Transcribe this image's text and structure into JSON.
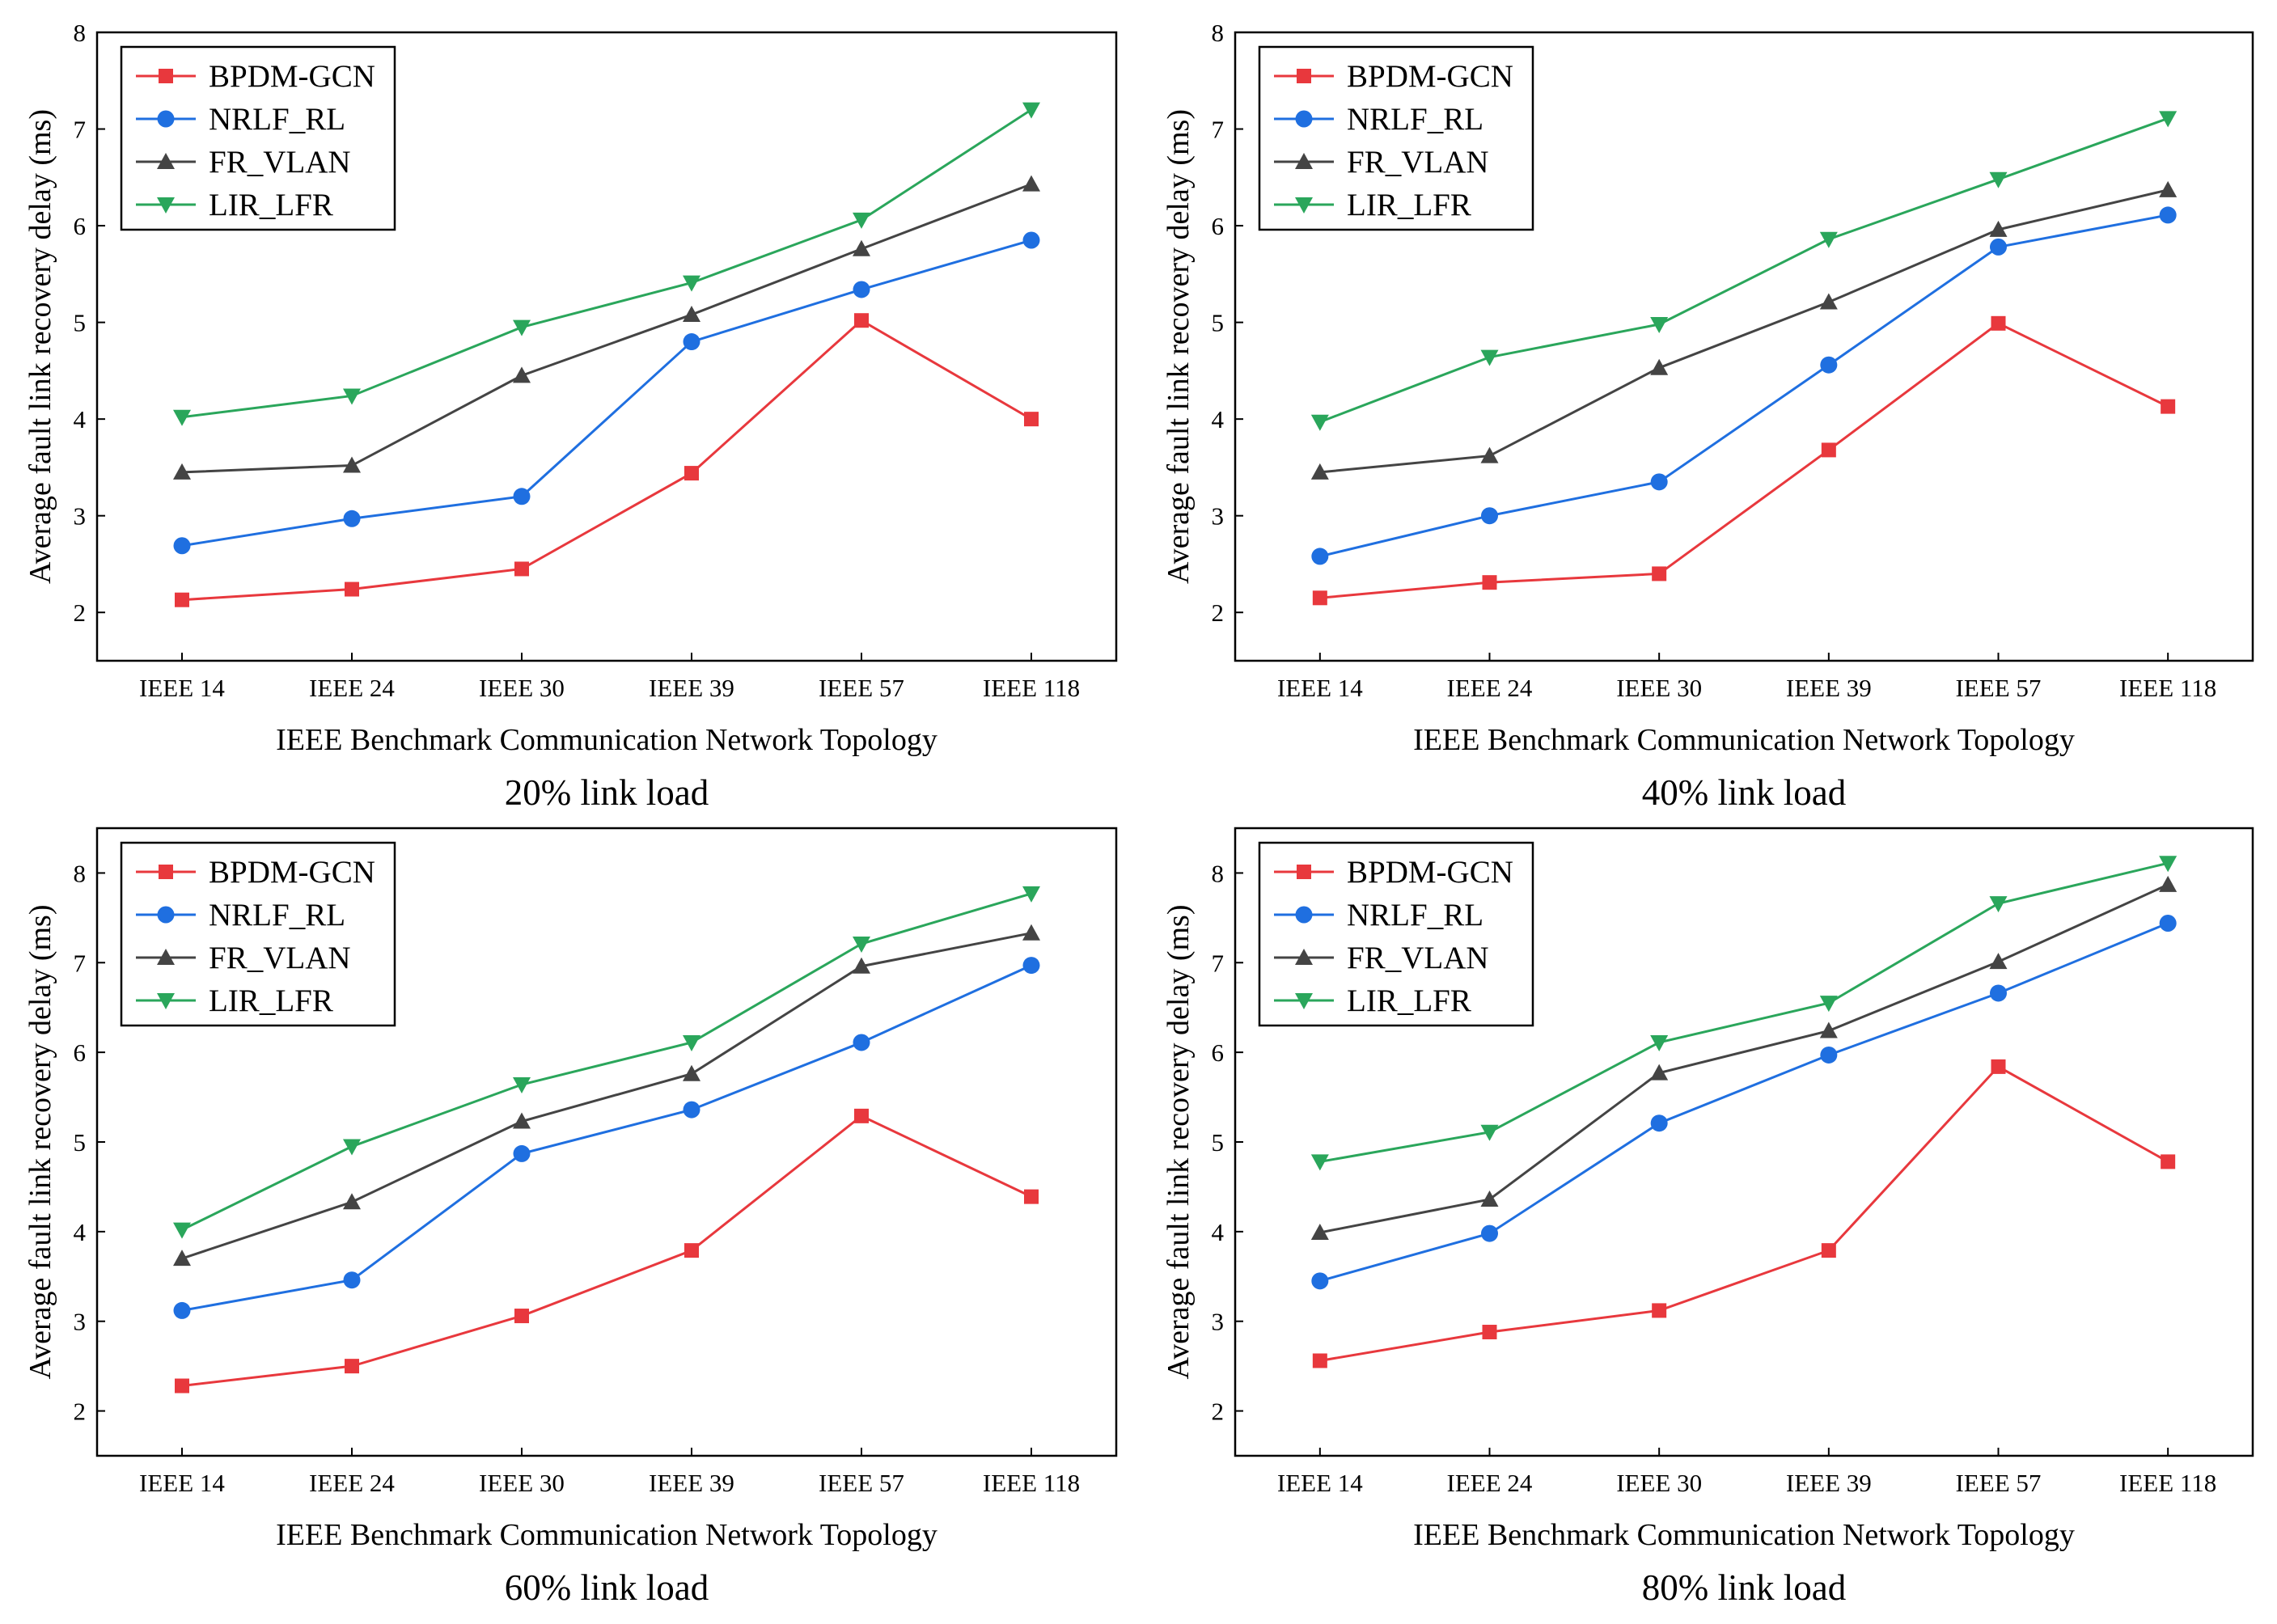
{
  "chart_data": [
    {
      "type": "line",
      "caption": "20% link load",
      "xlabel": "IEEE Benchmark Communication Network Topology",
      "ylabel": "Average fault link recovery delay (ms)",
      "categories": [
        "IEEE 14",
        "IEEE 24",
        "IEEE 30",
        "IEEE 39",
        "IEEE 57",
        "IEEE 118"
      ],
      "ylim": [
        1.5,
        8
      ],
      "yticks": [
        2,
        3,
        4,
        5,
        6,
        7,
        8
      ],
      "ytick_labels": [
        "2",
        "3",
        "4",
        "5",
        "6",
        "7",
        "8"
      ],
      "series": [
        {
          "name": "BPDM-GCN",
          "color": "#e8383d",
          "marker": "square",
          "values": [
            2.13,
            2.24,
            2.45,
            3.44,
            5.02,
            4.0
          ]
        },
        {
          "name": "NRLF_RL",
          "color": "#1f6fe0",
          "marker": "circle",
          "values": [
            2.69,
            2.97,
            3.2,
            4.8,
            5.34,
            5.85
          ]
        },
        {
          "name": "FR_VLAN",
          "color": "#444444",
          "marker": "triangle-up",
          "values": [
            3.45,
            3.52,
            4.45,
            5.08,
            5.76,
            6.43
          ]
        },
        {
          "name": "LIR_LFR",
          "color": "#2aa65b",
          "marker": "triangle-down",
          "values": [
            4.02,
            4.24,
            4.95,
            5.41,
            6.06,
            7.2
          ]
        }
      ]
    },
    {
      "type": "line",
      "caption": "40% link load",
      "xlabel": "IEEE Benchmark Communication Network Topology",
      "ylabel": "Average fault link recovery delay (ms)",
      "categories": [
        "IEEE 14",
        "IEEE 24",
        "IEEE 30",
        "IEEE 39",
        "IEEE 57",
        "IEEE 118"
      ],
      "ylim": [
        1.5,
        8
      ],
      "yticks": [
        2,
        3,
        4,
        5,
        6,
        7,
        8
      ],
      "ytick_labels": [
        "2",
        "3",
        "4",
        "5",
        "6",
        "7",
        "8"
      ],
      "series": [
        {
          "name": "BPDM-GCN",
          "color": "#e8383d",
          "marker": "square",
          "values": [
            2.15,
            2.31,
            2.4,
            3.68,
            4.99,
            4.13
          ]
        },
        {
          "name": "NRLF_RL",
          "color": "#1f6fe0",
          "marker": "circle",
          "values": [
            2.58,
            3.0,
            3.35,
            4.56,
            5.78,
            6.11
          ]
        },
        {
          "name": "FR_VLAN",
          "color": "#444444",
          "marker": "triangle-up",
          "values": [
            3.45,
            3.62,
            4.53,
            5.21,
            5.96,
            6.37
          ]
        },
        {
          "name": "LIR_LFR",
          "color": "#2aa65b",
          "marker": "triangle-down",
          "values": [
            3.97,
            4.64,
            4.98,
            5.86,
            6.48,
            7.11
          ]
        }
      ]
    },
    {
      "type": "line",
      "caption": "60% link load",
      "xlabel": "IEEE Benchmark Communication Network Topology",
      "ylabel": "Average fault link recovery delay (ms)",
      "categories": [
        "IEEE 14",
        "IEEE 24",
        "IEEE 30",
        "IEEE 39",
        "IEEE 57",
        "IEEE 118"
      ],
      "ylim": [
        1.5,
        8.5
      ],
      "yticks": [
        2,
        3,
        4,
        5,
        6,
        7,
        8
      ],
      "ytick_labels": [
        "2",
        "3",
        "4",
        "5",
        "6",
        "7",
        "8"
      ],
      "series": [
        {
          "name": "BPDM-GCN",
          "color": "#e8383d",
          "marker": "square",
          "values": [
            2.28,
            2.5,
            3.06,
            3.79,
            5.29,
            4.39
          ]
        },
        {
          "name": "NRLF_RL",
          "color": "#1f6fe0",
          "marker": "circle",
          "values": [
            3.12,
            3.46,
            4.87,
            5.36,
            6.11,
            6.97
          ]
        },
        {
          "name": "FR_VLAN",
          "color": "#444444",
          "marker": "triangle-up",
          "values": [
            3.7,
            4.33,
            5.23,
            5.76,
            6.96,
            7.33
          ]
        },
        {
          "name": "LIR_LFR",
          "color": "#2aa65b",
          "marker": "triangle-down",
          "values": [
            4.02,
            4.95,
            5.64,
            6.11,
            7.21,
            7.77
          ]
        }
      ]
    },
    {
      "type": "line",
      "caption": "80% link load",
      "xlabel": "IEEE Benchmark Communication Network Topology",
      "ylabel": "Average fault link recovery delay (ms)",
      "categories": [
        "IEEE 14",
        "IEEE 24",
        "IEEE 30",
        "IEEE 39",
        "IEEE 57",
        "IEEE 118"
      ],
      "ylim": [
        1.5,
        8.5
      ],
      "yticks": [
        2,
        3,
        4,
        5,
        6,
        7,
        8
      ],
      "ytick_labels": [
        "2",
        "3",
        "4",
        "5",
        "6",
        "7",
        "8"
      ],
      "series": [
        {
          "name": "BPDM-GCN",
          "color": "#e8383d",
          "marker": "square",
          "values": [
            2.56,
            2.88,
            3.12,
            3.79,
            5.84,
            4.78
          ]
        },
        {
          "name": "NRLF_RL",
          "color": "#1f6fe0",
          "marker": "circle",
          "values": [
            3.45,
            3.98,
            5.21,
            5.97,
            6.66,
            7.44
          ]
        },
        {
          "name": "FR_VLAN",
          "color": "#444444",
          "marker": "triangle-up",
          "values": [
            3.99,
            4.36,
            5.77,
            6.24,
            7.01,
            7.87
          ]
        },
        {
          "name": "LIR_LFR",
          "color": "#2aa65b",
          "marker": "triangle-down",
          "values": [
            4.78,
            5.11,
            6.11,
            6.55,
            7.66,
            8.11
          ]
        }
      ]
    }
  ]
}
